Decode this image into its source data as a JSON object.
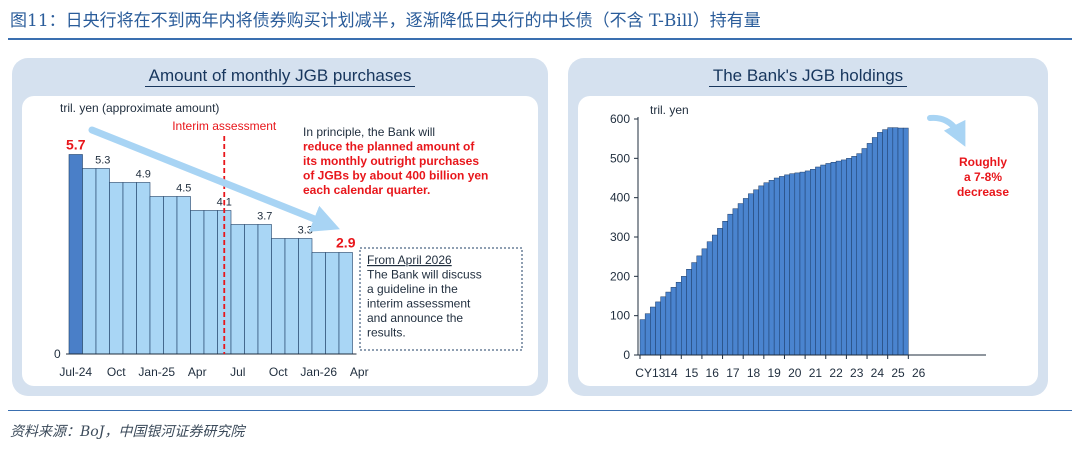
{
  "figure_title": "图11：日央行将在不到两年内将债券购买计划减半，逐渐降低日央行的中长债（不含 T-Bill）持有量",
  "source": "资料来源：BoJ，中国银河证券研究院",
  "colors": {
    "title_blue": "#2a5c9a",
    "panel_bg": "#d5e1ef",
    "bar_dark": "#4a7fc8",
    "bar_light": "#a9d6f5",
    "bar_holdings": "#4a84cf",
    "accent_red": "#e8161b",
    "arrow": "#a8d4f4"
  },
  "chart_data": [
    {
      "type": "bar",
      "title": "Amount of monthly JGB purchases",
      "ylabel": "tril. yen (approximate amount)",
      "ylim": [
        0,
        6.0
      ],
      "x_tick_labels": [
        "Jul-24",
        "Oct",
        "Jan-25",
        "Apr",
        "Jul",
        "Oct",
        "Jan-26",
        "Apr"
      ],
      "months": [
        "Jul-24",
        "Aug-24",
        "Sep-24",
        "Oct-24",
        "Nov-24",
        "Dec-24",
        "Jan-25",
        "Feb-25",
        "Mar-25",
        "Apr-25",
        "May-25",
        "Jun-25",
        "Jul-25",
        "Aug-25",
        "Sep-25",
        "Oct-25",
        "Nov-25",
        "Dec-25",
        "Jan-26",
        "Feb-26",
        "Mar-26"
      ],
      "values": [
        5.7,
        5.3,
        5.3,
        4.9,
        4.9,
        4.9,
        4.5,
        4.5,
        4.5,
        4.1,
        4.1,
        4.1,
        3.7,
        3.7,
        3.7,
        3.3,
        3.3,
        3.3,
        2.9,
        2.9,
        2.9
      ],
      "step_labels": [
        "5.7",
        "5.3",
        "4.9",
        "4.5",
        "4.1",
        "3.7",
        "3.3",
        "2.9"
      ],
      "interim_label": "Interim assessment",
      "note_lines": [
        {
          "text": "In principle, the Bank will",
          "red": false
        },
        {
          "text": "reduce the planned amount of",
          "red": true
        },
        {
          "text": "its monthly outright purchases",
          "red": true
        },
        {
          "text": "of JGBs by about 400 billion yen",
          "red": true
        },
        {
          "text": "each calendar quarter.",
          "red": true
        }
      ],
      "box_lines": [
        {
          "text": "From April 2026",
          "underline": true
        },
        {
          "text": "The Bank will discuss",
          "underline": false
        },
        {
          "text": "a guideline in the",
          "underline": false
        },
        {
          "text": "interim assessment",
          "underline": false
        },
        {
          "text": "and announce the",
          "underline": false
        },
        {
          "text": "results.",
          "underline": false
        }
      ]
    },
    {
      "type": "bar",
      "title": "The Bank's JGB holdings",
      "ylabel": "tril. yen",
      "ylim": [
        0,
        600
      ],
      "y_ticks": [
        0,
        100,
        200,
        300,
        400,
        500,
        600
      ],
      "x_tick_labels": [
        "CY13",
        "14",
        "15",
        "16",
        "17",
        "18",
        "19",
        "20",
        "21",
        "22",
        "23",
        "24",
        "25",
        "26"
      ],
      "values": [
        90,
        105,
        122,
        135,
        148,
        160,
        172,
        185,
        200,
        218,
        235,
        252,
        270,
        288,
        305,
        322,
        340,
        358,
        372,
        385,
        398,
        410,
        420,
        430,
        438,
        444,
        450,
        454,
        458,
        461,
        463,
        465,
        468,
        472,
        478,
        483,
        487,
        490,
        493,
        496,
        500,
        505,
        512,
        525,
        538,
        553,
        566,
        573,
        578,
        578,
        577,
        577
      ],
      "annotation_lines": [
        "Roughly",
        "a 7-8%",
        "decrease"
      ]
    }
  ]
}
